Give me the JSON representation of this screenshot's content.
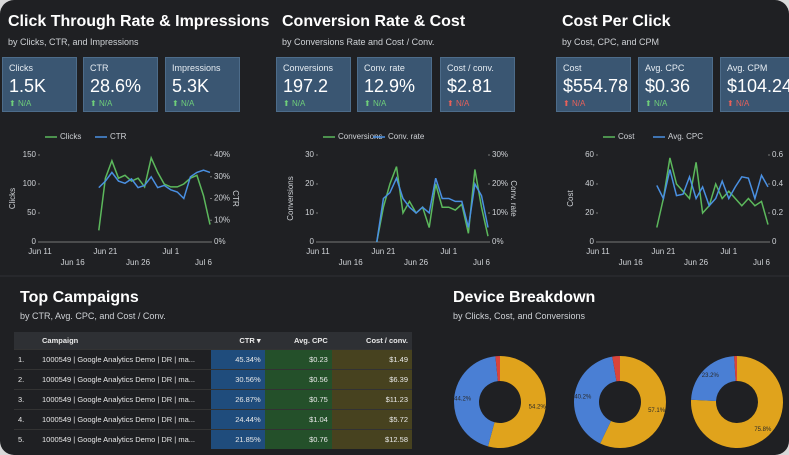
{
  "sections": [
    {
      "title": "Click Through Rate & Impressions",
      "subtitle": "by Clicks, CTR, and Impressions",
      "cards": [
        {
          "label": "Clicks",
          "value": "1.5K",
          "change": "N/A",
          "change_color": "#6fcf7a"
        },
        {
          "label": "CTR",
          "value": "28.6%",
          "change": "N/A",
          "change_color": "#6fcf7a"
        },
        {
          "label": "Impressions",
          "value": "5.3K",
          "change": "N/A",
          "change_color": "#6fcf7a"
        }
      ]
    },
    {
      "title": "Conversion Rate & Cost",
      "subtitle": "by Conversions Rate and Cost / Conv.",
      "cards": [
        {
          "label": "Conversions",
          "value": "197.2",
          "change": "N/A",
          "change_color": "#6fcf7a"
        },
        {
          "label": "Conv. rate",
          "value": "12.9%",
          "change": "N/A",
          "change_color": "#6fcf7a"
        },
        {
          "label": "Cost / conv.",
          "value": "$2.81",
          "change": "N/A",
          "change_color": "#e8605a"
        }
      ]
    },
    {
      "title": "Cost Per Click",
      "subtitle": "by Cost, CPC, and CPM",
      "cards": [
        {
          "label": "Cost",
          "value": "$554.78",
          "change": "N/A",
          "change_color": "#e8605a"
        },
        {
          "label": "Avg. CPC",
          "value": "$0.36",
          "change": "N/A",
          "change_color": "#6fcf7a"
        },
        {
          "label": "Avg. CPM",
          "value": "$104.24",
          "change": "N/A",
          "change_color": "#e8605a"
        }
      ]
    }
  ],
  "campaigns": {
    "title": "Top Campaigns",
    "subtitle": "by CTR, Avg. CPC, and Cost / Conv.",
    "columns": [
      "Campaign",
      "CTR ▾",
      "Avg. CPC",
      "Cost / conv."
    ],
    "rows": [
      [
        "1.",
        "1000549 | Google Analytics Demo | DR | ma...",
        "45.34%",
        "$0.23",
        "$1.49"
      ],
      [
        "2.",
        "1000549 | Google Analytics Demo | DR | ma...",
        "30.56%",
        "$0.56",
        "$6.39"
      ],
      [
        "3.",
        "1000549 | Google Analytics Demo | DR | ma...",
        "26.87%",
        "$0.75",
        "$11.23"
      ],
      [
        "4.",
        "1000549 | Google Analytics Demo | DR | ma...",
        "24.44%",
        "$1.04",
        "$5.72"
      ],
      [
        "5.",
        "1000549 | Google Analytics Demo | DR | ma...",
        "21.85%",
        "$0.76",
        "$12.58"
      ]
    ]
  },
  "devices": {
    "title": "Device Breakdown",
    "subtitle": "by Clicks, Cost, and Conversions"
  },
  "chart_data": [
    {
      "type": "line",
      "ylabel": "Clicks",
      "y2label": "CTR",
      "categories": [
        "Jun 11",
        null,
        null,
        null,
        null,
        "Jun 16",
        null,
        null,
        null,
        null,
        "Jun 21",
        null,
        null,
        null,
        null,
        "Jun 26",
        null,
        null,
        null,
        null,
        "Jul 1",
        null,
        null,
        null,
        null,
        "Jul 6",
        null
      ],
      "series": [
        {
          "name": "Clicks",
          "color": "#5cb85c",
          "values": [
            null,
            null,
            null,
            null,
            null,
            null,
            null,
            null,
            null,
            20,
            110,
            140,
            110,
            115,
            105,
            110,
            95,
            145,
            120,
            100,
            95,
            95,
            100,
            110,
            115,
            80,
            30
          ]
        },
        {
          "name": "CTR",
          "color": "#4a90e2",
          "axis": "y2",
          "values": [
            null,
            null,
            null,
            null,
            null,
            null,
            null,
            null,
            null,
            25,
            28,
            32,
            28,
            27,
            29,
            25,
            26,
            30,
            25,
            26,
            24,
            23,
            20,
            30,
            32,
            33,
            32
          ]
        }
      ],
      "ylim": [
        0,
        150
      ],
      "yticks": [
        0,
        50,
        100,
        150
      ],
      "y2lim": [
        0,
        40
      ],
      "y2ticks": [
        {
          "value": 0,
          "label": "0%"
        },
        {
          "value": 10,
          "label": "10%"
        },
        {
          "value": 20,
          "label": "20%"
        },
        {
          "value": 30,
          "label": "30%"
        },
        {
          "value": 40,
          "label": "40%"
        }
      ]
    },
    {
      "type": "line",
      "ylabel": "Conversions",
      "y2label": "Conv. rate",
      "categories": [
        "Jun 11",
        null,
        null,
        null,
        null,
        "Jun 16",
        null,
        null,
        null,
        null,
        "Jun 21",
        null,
        null,
        null,
        null,
        "Jun 26",
        null,
        null,
        null,
        null,
        "Jul 1",
        null,
        null,
        null,
        null,
        "Jul 6",
        null
      ],
      "series": [
        {
          "name": "Conversions",
          "color": "#5cb85c",
          "values": [
            null,
            null,
            null,
            null,
            null,
            null,
            null,
            null,
            null,
            0,
            12,
            20,
            26,
            10,
            14,
            10,
            12,
            5,
            20,
            12,
            12,
            11,
            13,
            3,
            25,
            12,
            2
          ]
        },
        {
          "name": "Conv. rate",
          "color": "#4a90e2",
          "axis": "y2",
          "values": [
            null,
            null,
            null,
            null,
            null,
            null,
            null,
            null,
            null,
            0,
            15,
            17,
            22,
            15,
            12,
            10,
            12,
            10,
            22,
            15,
            15,
            14,
            14,
            5,
            20,
            16,
            5
          ]
        }
      ],
      "ylim": [
        0,
        30
      ],
      "yticks": [
        0,
        10,
        20,
        30
      ],
      "y2lim": [
        0,
        30
      ],
      "y2ticks": [
        {
          "value": 0,
          "label": "0%"
        },
        {
          "value": 10,
          "label": "10%"
        },
        {
          "value": 20,
          "label": "20%"
        },
        {
          "value": 30,
          "label": "30%"
        }
      ]
    },
    {
      "type": "line",
      "ylabel": "Cost",
      "y2label": "Avg. CPC",
      "categories": [
        "Jun 11",
        null,
        null,
        null,
        null,
        "Jun 16",
        null,
        null,
        null,
        null,
        "Jun 21",
        null,
        null,
        null,
        null,
        "Jun 26",
        null,
        null,
        null,
        null,
        "Jul 1",
        null,
        null,
        null,
        null,
        "Jul 6",
        null
      ],
      "series": [
        {
          "name": "Cost",
          "color": "#5cb85c",
          "values": [
            null,
            null,
            null,
            null,
            null,
            null,
            null,
            null,
            null,
            10,
            30,
            58,
            40,
            35,
            30,
            55,
            20,
            25,
            40,
            30,
            35,
            30,
            25,
            30,
            25,
            28,
            12
          ]
        },
        {
          "name": "Avg. CPC",
          "color": "#4a90e2",
          "axis": "y2",
          "values": [
            null,
            null,
            null,
            null,
            null,
            null,
            null,
            null,
            null,
            0.39,
            0.3,
            0.5,
            0.32,
            0.33,
            0.45,
            0.3,
            0.38,
            0.25,
            0.3,
            0.42,
            0.3,
            0.38,
            0.45,
            0.44,
            0.3,
            0.46,
            0.38
          ]
        }
      ],
      "ylim": [
        0,
        60
      ],
      "yticks": [
        0,
        20,
        40,
        60
      ],
      "y2lim": [
        0,
        0.6
      ],
      "y2ticks": [
        0,
        0.2,
        0.4,
        0.6
      ]
    },
    {
      "type": "pie",
      "values": [
        54.2,
        44.2,
        1.6
      ],
      "value_labels": [
        "54.2%",
        "44.2%",
        null
      ],
      "colors": [
        "#e0a31c",
        "#4a7fd4",
        "#d9443a"
      ]
    },
    {
      "type": "pie",
      "values": [
        57.1,
        40.2,
        2.7
      ],
      "value_labels": [
        "57.1%",
        "40.2%",
        null
      ],
      "colors": [
        "#e0a31c",
        "#4a7fd4",
        "#d9443a"
      ]
    },
    {
      "type": "pie",
      "values": [
        75.8,
        23.2,
        1.0
      ],
      "value_labels": [
        "75.8%",
        "23.2%",
        null
      ],
      "colors": [
        "#e0a31c",
        "#4a7fd4",
        "#d9443a"
      ]
    }
  ]
}
